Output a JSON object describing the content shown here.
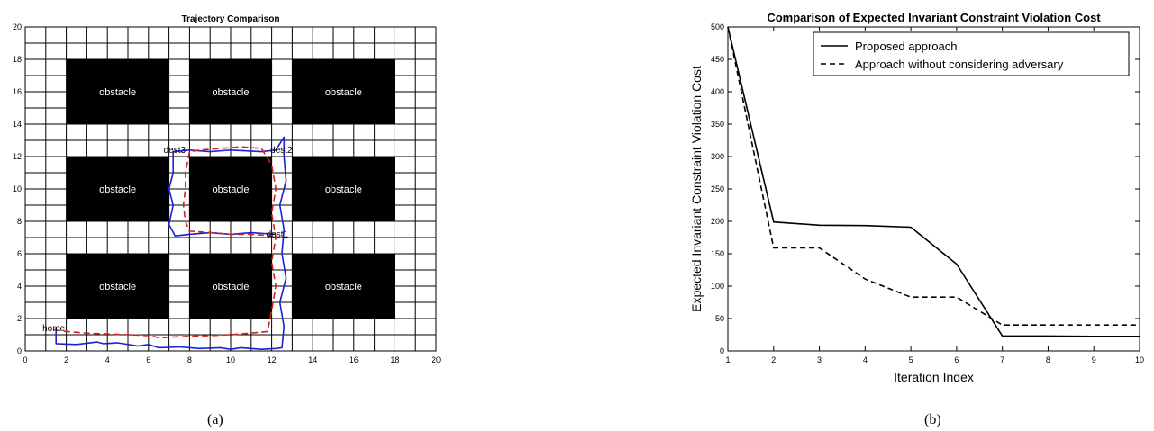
{
  "figure": {
    "caption_a": "(a)",
    "caption_b": "(b)"
  },
  "chart_data": [
    {
      "type": "line",
      "title": "Trajectory Comparison",
      "xlim": [
        0,
        20
      ],
      "ylim": [
        0,
        20
      ],
      "xticks": [
        0,
        2,
        4,
        6,
        8,
        10,
        12,
        14,
        16,
        18,
        20
      ],
      "yticks": [
        0,
        2,
        4,
        6,
        8,
        10,
        12,
        14,
        16,
        18,
        20
      ],
      "grid": true,
      "grid_step": 1,
      "obstacles": [
        {
          "label": "obstacle",
          "x": [
            2,
            7
          ],
          "y": [
            14,
            18
          ]
        },
        {
          "label": "obstacle",
          "x": [
            8,
            12
          ],
          "y": [
            14,
            18
          ]
        },
        {
          "label": "obstacle",
          "x": [
            13,
            18
          ],
          "y": [
            14,
            18
          ]
        },
        {
          "label": "obstacle",
          "x": [
            2,
            7
          ],
          "y": [
            8,
            12
          ]
        },
        {
          "label": "obstacle",
          "x": [
            8,
            12
          ],
          "y": [
            8,
            12
          ]
        },
        {
          "label": "obstacle",
          "x": [
            13,
            18
          ],
          "y": [
            8,
            12
          ]
        },
        {
          "label": "obstacle",
          "x": [
            2,
            7
          ],
          "y": [
            2,
            6
          ]
        },
        {
          "label": "obstacle",
          "x": [
            8,
            12
          ],
          "y": [
            2,
            6
          ]
        },
        {
          "label": "obstacle",
          "x": [
            13,
            18
          ],
          "y": [
            2,
            6
          ]
        }
      ],
      "points": [
        {
          "label": "home",
          "x": 1.1,
          "y": 1.4
        },
        {
          "label": "dest1",
          "x": 12.0,
          "y": 7.2
        },
        {
          "label": "dest2",
          "x": 12.2,
          "y": 12.4
        },
        {
          "label": "dest3",
          "x": 7.0,
          "y": 12.4
        }
      ],
      "series": [
        {
          "color": "#1f1fd6",
          "dash": "solid",
          "x": [
            1.5,
            1.5,
            2.5,
            3.5,
            3.8,
            4.5,
            5.5,
            6.0,
            6.5,
            7.5,
            8.5,
            9.5,
            10.0,
            10.5,
            11.5,
            12.2,
            12.5,
            12.6,
            12.4,
            12.7,
            12.5,
            12.6,
            12.4,
            12.7,
            12.6,
            12.6,
            12.2,
            11.5,
            10.0,
            9.0,
            8.0,
            7.2,
            7.2,
            7.0,
            7.2,
            7.0,
            7.3,
            8.0,
            9.0,
            10.0,
            11.0,
            12.2
          ],
          "y": [
            1.4,
            0.45,
            0.4,
            0.55,
            0.45,
            0.5,
            0.3,
            0.4,
            0.2,
            0.25,
            0.15,
            0.2,
            0.1,
            0.2,
            0.1,
            0.15,
            0.2,
            1.5,
            3.0,
            4.5,
            6.0,
            7.5,
            9.0,
            10.5,
            12.0,
            13.2,
            12.4,
            12.3,
            12.4,
            12.3,
            12.4,
            12.3,
            11.0,
            10.0,
            9.0,
            7.8,
            7.1,
            7.2,
            7.3,
            7.2,
            7.3,
            7.2
          ]
        },
        {
          "color": "#d62020",
          "dash": "dashed",
          "x": [
            1.4,
            2.0,
            3.0,
            4.0,
            5.0,
            6.0,
            6.6,
            7.0,
            8.0,
            9.0,
            10.0,
            11.0,
            11.8,
            12.0,
            12.2,
            12.0,
            12.2,
            12.0,
            12.2,
            12.0,
            11.5,
            10.5,
            9.5,
            8.5,
            8.0,
            7.8,
            7.8,
            7.7,
            7.8,
            8.0,
            9.0,
            10.0,
            11.0,
            12.0
          ],
          "y": [
            1.3,
            1.2,
            1.1,
            1.05,
            1.0,
            0.95,
            0.8,
            0.85,
            0.9,
            0.95,
            1.0,
            1.1,
            1.2,
            2.5,
            4.0,
            5.5,
            7.0,
            8.5,
            10.0,
            11.5,
            12.5,
            12.6,
            12.5,
            12.4,
            12.3,
            11.0,
            10.0,
            9.0,
            8.0,
            7.4,
            7.3,
            7.2,
            7.2,
            7.1
          ]
        }
      ]
    },
    {
      "type": "line",
      "title": "Comparison of Expected Invariant Constraint Violation Cost",
      "xlabel": "Iteration Index",
      "ylabel": "Expected Invariant Constraint Violation Cost",
      "xlim": [
        1,
        10
      ],
      "ylim": [
        0,
        500
      ],
      "xticks": [
        1,
        2,
        3,
        4,
        5,
        6,
        7,
        8,
        9,
        10
      ],
      "yticks": [
        0,
        50,
        100,
        150,
        200,
        250,
        300,
        350,
        400,
        450,
        500
      ],
      "legend": "top-right",
      "x": [
        1,
        2,
        3,
        4,
        5,
        6,
        7,
        8,
        9,
        10
      ],
      "series": [
        {
          "name": "Proposed approach",
          "dash": "solid",
          "values": [
            500,
            199,
            194,
            193.5,
            191,
            134,
            23,
            23,
            22.5,
            22.5
          ]
        },
        {
          "name": "Approach without considering adversary",
          "dash": "dashed",
          "values": [
            500,
            159,
            159,
            111,
            83,
            83,
            40,
            40,
            40,
            40
          ]
        }
      ]
    }
  ]
}
